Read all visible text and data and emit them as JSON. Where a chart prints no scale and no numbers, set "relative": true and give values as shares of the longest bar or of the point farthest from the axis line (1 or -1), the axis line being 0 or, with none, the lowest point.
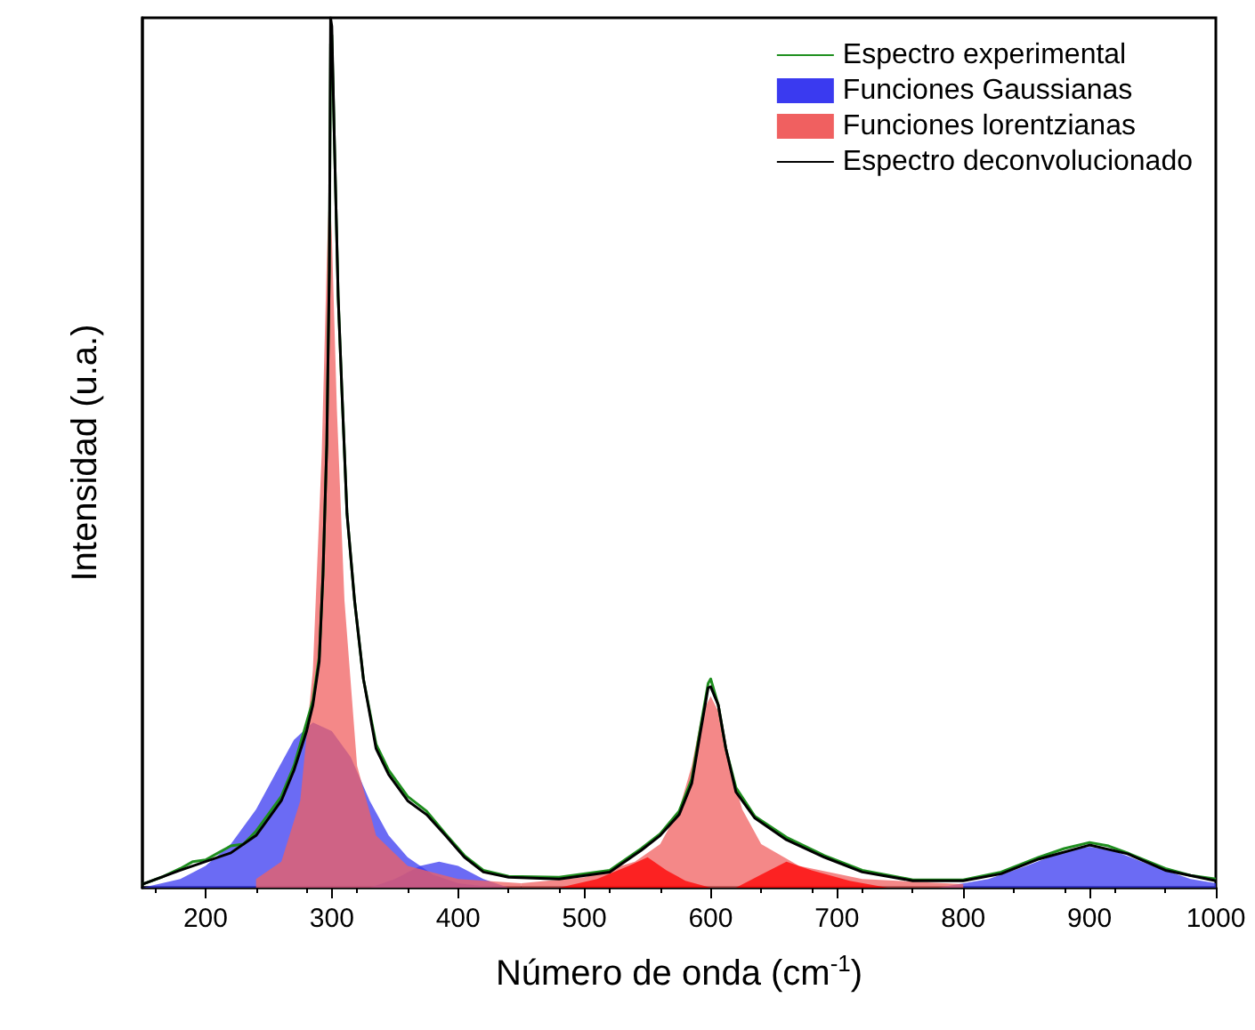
{
  "chart_data": {
    "type": "line",
    "relative": true,
    "xlabel": "Número de onda (cm$^{-1}$)",
    "ylabel": "Intensidad (u.a.)",
    "xlim": [
      150,
      1000
    ],
    "xticks": [
      200,
      300,
      400,
      500,
      600,
      700,
      800,
      900,
      1000
    ],
    "legend": "top right",
    "grid": false,
    "series": [
      {
        "name": "Espectro experimental",
        "color": "#1f8f1f",
        "x": [
          150,
          165,
          180,
          190,
          200,
          210,
          220,
          230,
          240,
          250,
          260,
          270,
          280,
          285,
          290,
          293,
          296,
          298,
          299,
          300,
          302,
          305,
          308,
          312,
          318,
          325,
          335,
          345,
          360,
          375,
          390,
          405,
          420,
          440,
          480,
          520,
          545,
          560,
          575,
          585,
          592,
          598,
          600,
          606,
          612,
          620,
          635,
          660,
          690,
          720,
          760,
          800,
          830,
          860,
          880,
          900,
          915,
          930,
          960,
          980,
          1000
        ],
        "values": [
          0.004,
          0.012,
          0.022,
          0.03,
          0.032,
          0.04,
          0.048,
          0.05,
          0.065,
          0.085,
          0.105,
          0.14,
          0.19,
          0.215,
          0.265,
          0.36,
          0.51,
          0.71,
          0.97,
          0.98,
          0.86,
          0.68,
          0.57,
          0.43,
          0.33,
          0.24,
          0.165,
          0.135,
          0.105,
          0.088,
          0.062,
          0.037,
          0.02,
          0.013,
          0.012,
          0.02,
          0.045,
          0.062,
          0.088,
          0.125,
          0.185,
          0.235,
          0.24,
          0.21,
          0.16,
          0.115,
          0.082,
          0.058,
          0.037,
          0.02,
          0.009,
          0.009,
          0.018,
          0.035,
          0.045,
          0.052,
          0.048,
          0.04,
          0.022,
          0.014,
          0.01
        ]
      },
      {
        "name": "Funciones Gaussianas",
        "type": "area",
        "color": "#3a3af0",
        "x": [
          150,
          180,
          200,
          220,
          240,
          255,
          270,
          285,
          300,
          315,
          330,
          345,
          360,
          380,
          400,
          430
        ],
        "values": [
          0,
          0.01,
          0.025,
          0.05,
          0.09,
          0.13,
          0.17,
          0.19,
          0.18,
          0.15,
          0.1,
          0.06,
          0.035,
          0.015,
          0.005,
          0
        ]
      },
      {
        "type": "area",
        "color": "#3a3af0",
        "x": [
          330,
          350,
          370,
          385,
          400,
          420,
          440
        ],
        "values": [
          0,
          0.01,
          0.025,
          0.03,
          0.025,
          0.01,
          0
        ]
      },
      {
        "type": "area",
        "color": "#3a3af0",
        "x": [
          780,
          820,
          850,
          880,
          900,
          920,
          950,
          980,
          1000
        ],
        "values": [
          0,
          0.01,
          0.025,
          0.042,
          0.047,
          0.042,
          0.025,
          0.01,
          0.005
        ]
      },
      {
        "name": "Funciones lorentzianas",
        "type": "area",
        "color": "#f06060",
        "x": [
          240,
          260,
          275,
          285,
          292,
          296,
          298,
          300,
          304,
          310,
          320,
          335,
          360,
          400,
          450
        ],
        "values": [
          0.01,
          0.03,
          0.1,
          0.25,
          0.5,
          0.72,
          0.81,
          0.75,
          0.55,
          0.33,
          0.14,
          0.06,
          0.025,
          0.01,
          0.005
        ]
      },
      {
        "type": "area",
        "color": "#f06060",
        "x": [
          450,
          500,
          540,
          560,
          575,
          585,
          593,
          600,
          607,
          615,
          625,
          640,
          670,
          720,
          800
        ],
        "values": [
          0.005,
          0.012,
          0.03,
          0.05,
          0.09,
          0.14,
          0.2,
          0.22,
          0.2,
          0.14,
          0.09,
          0.05,
          0.025,
          0.01,
          0.004
        ]
      },
      {
        "type": "area",
        "color": "#ff0000",
        "x": [
          480,
          510,
          535,
          550,
          565,
          580,
          600
        ],
        "values": [
          0,
          0.01,
          0.025,
          0.035,
          0.02,
          0.008,
          0
        ]
      },
      {
        "type": "area",
        "color": "#ff0000",
        "x": [
          620,
          640,
          660,
          680,
          710,
          740
        ],
        "values": [
          0,
          0.015,
          0.03,
          0.02,
          0.008,
          0
        ]
      },
      {
        "name": "Espectro deconvolucionado",
        "color": "#000000",
        "x": [
          150,
          180,
          200,
          220,
          240,
          250,
          260,
          270,
          280,
          285,
          290,
          293,
          296,
          298,
          299,
          300,
          302,
          305,
          308,
          312,
          318,
          325,
          335,
          345,
          360,
          375,
          390,
          405,
          420,
          440,
          480,
          520,
          545,
          560,
          575,
          585,
          592,
          598,
          600,
          606,
          612,
          620,
          635,
          660,
          690,
          720,
          760,
          800,
          830,
          860,
          900,
          930,
          960,
          1000
        ],
        "values": [
          0.004,
          0.02,
          0.03,
          0.04,
          0.06,
          0.08,
          0.1,
          0.135,
          0.18,
          0.21,
          0.26,
          0.36,
          0.51,
          0.71,
          1,
          0.99,
          0.86,
          0.68,
          0.57,
          0.43,
          0.33,
          0.24,
          0.16,
          0.13,
          0.1,
          0.084,
          0.06,
          0.035,
          0.018,
          0.012,
          0.01,
          0.018,
          0.043,
          0.06,
          0.084,
          0.12,
          0.18,
          0.23,
          0.231,
          0.21,
          0.16,
          0.11,
          0.08,
          0.055,
          0.035,
          0.018,
          0.008,
          0.008,
          0.016,
          0.033,
          0.049,
          0.039,
          0.02,
          0.008
        ]
      }
    ]
  }
}
